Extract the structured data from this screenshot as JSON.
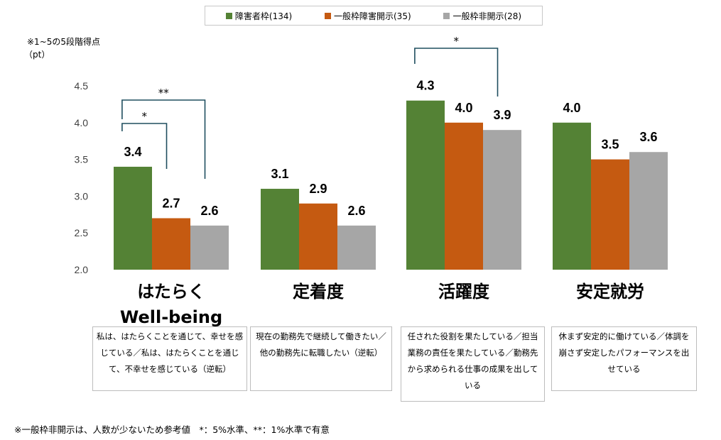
{
  "legend": [
    {
      "label": "障害者枠(134)",
      "color": "#548235"
    },
    {
      "label": "一般枠障害開示(35)",
      "color": "#c55a11"
    },
    {
      "label": "一般枠非開示(28)",
      "color": "#a6a6a6"
    }
  ],
  "notes": {
    "scale": "※1~5の5段階得点",
    "unit": "（pt）",
    "footnote": "※一般枠非開示は、人数が少ないため参考値　*：5%水準、**：1%水準で有意"
  },
  "chart_data": {
    "type": "bar",
    "categories": [
      "はたらく\nWell-being",
      "定着度",
      "活躍度",
      "安定就労"
    ],
    "series": [
      {
        "name": "障害者枠(134)",
        "values": [
          3.4,
          3.1,
          4.3,
          4.0
        ],
        "labels": [
          "3.4",
          "3.1",
          "4.3",
          "4.0"
        ]
      },
      {
        "name": "一般枠障害開示(35)",
        "values": [
          2.7,
          2.9,
          4.0,
          3.5
        ],
        "labels": [
          "2.7",
          "2.9",
          "4.0",
          "3.5"
        ]
      },
      {
        "name": "一般枠非開示(28)",
        "values": [
          2.6,
          2.6,
          3.9,
          3.6
        ],
        "labels": [
          "2.6",
          "2.6",
          "3.9",
          "3.6"
        ]
      }
    ],
    "ylim": [
      2.0,
      4.5
    ],
    "yticks": [
      "2.0",
      "2.5",
      "3.0",
      "3.5",
      "4.0",
      "4.5"
    ],
    "significance": [
      {
        "category": 0,
        "from": 0,
        "to": 2,
        "mark": "**"
      },
      {
        "category": 0,
        "from": 0,
        "to": 1,
        "mark": "*"
      },
      {
        "category": 2,
        "from": 0,
        "to": 2,
        "mark": "*"
      }
    ],
    "grid": false,
    "legend_position": "top"
  },
  "descriptions": [
    "私は、はたらくことを通じて、幸せを感じている／私は、はたらくことを通じて、不幸せを感じている（逆転）",
    "現在の勤務先で継続して働きたい／他の勤務先に転職したい（逆転）",
    "任された役割を果たしている／担当業務の責任を果たしている／勤務先から求められる仕事の成果を出している",
    "休まず安定的に働けている／体調を崩さず安定したパフォーマンスを出せている"
  ]
}
